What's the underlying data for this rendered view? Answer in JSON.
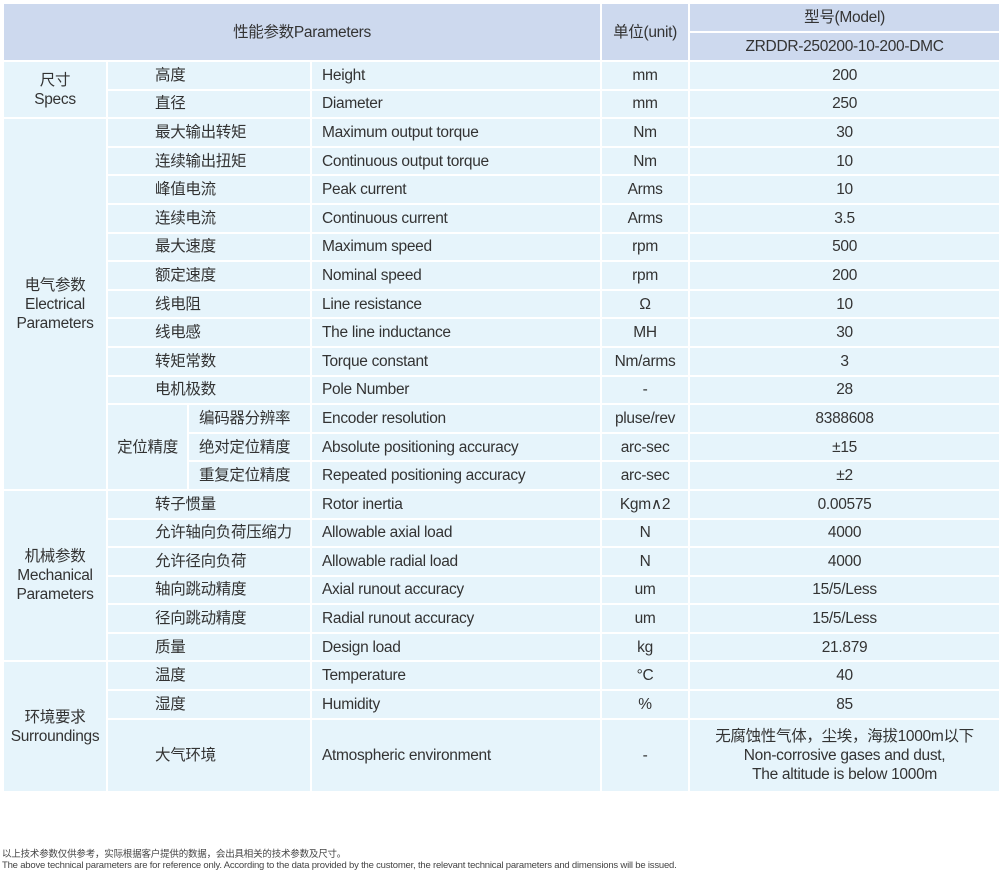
{
  "header": {
    "parameters": "性能参数Parameters",
    "unit": "单位(unit)",
    "model_label": "型号(Model)",
    "model": "ZRDDR-250200-10-200-DMC"
  },
  "sections": [
    {
      "label": "尺寸\nSpecs",
      "rows": [
        {
          "zh": "高度",
          "en": "Height",
          "unit": "mm",
          "value": "200"
        },
        {
          "zh": "直径",
          "en": "Diameter",
          "unit": "mm",
          "value": "250"
        }
      ]
    },
    {
      "label": "电气参数\nElectrical\nParameters",
      "rows": [
        {
          "zh": "最大输出转矩",
          "en": "Maximum output torque",
          "unit": "Nm",
          "value": "30"
        },
        {
          "zh": "连续输出扭矩",
          "en": "Continuous output torque",
          "unit": "Nm",
          "value": "10"
        },
        {
          "zh": "峰值电流",
          "en": "Peak current",
          "unit": "Arms",
          "value": "10"
        },
        {
          "zh": "连续电流",
          "en": "Continuous current",
          "unit": "Arms",
          "value": "3.5"
        },
        {
          "zh": "最大速度",
          "en": "Maximum speed",
          "unit": "rpm",
          "value": "500"
        },
        {
          "zh": "额定速度",
          "en": "Nominal speed",
          "unit": "rpm",
          "value": "200"
        },
        {
          "zh": "线电阻",
          "en": "Line resistance",
          "unit": "Ω",
          "value": "10"
        },
        {
          "zh": "线电感",
          "en": "The line inductance",
          "unit": "MH",
          "value": "30"
        },
        {
          "zh": "转矩常数",
          "en": "Torque constant",
          "unit": "Nm/arms",
          "value": "3"
        },
        {
          "zh": "电机极数",
          "en": "Pole Number",
          "unit": "-",
          "value": "28"
        },
        {
          "group": "定位精度",
          "zh": "编码器分辨率",
          "en": "Encoder resolution",
          "unit": "pluse/rev",
          "value": "8388608"
        },
        {
          "group": "定位精度",
          "zh": "绝对定位精度",
          "en": "Absolute positioning accuracy",
          "unit": "arc-sec",
          "value": "±15"
        },
        {
          "group": "定位精度",
          "zh": "重复定位精度",
          "en": "Repeated positioning accuracy",
          "unit": "arc-sec",
          "value": "±2"
        }
      ]
    },
    {
      "label": "机械参数\nMechanical\nParameters",
      "rows": [
        {
          "zh": "转子惯量",
          "en": "Rotor inertia",
          "unit": "Kgm∧2",
          "value": "0.00575"
        },
        {
          "zh": "允许轴向负荷压缩力",
          "en": "Allowable axial load",
          "unit": "N",
          "value": "4000"
        },
        {
          "zh": "允许径向负荷",
          "en": "Allowable radial load",
          "unit": "N",
          "value": "4000"
        },
        {
          "zh": "轴向跳动精度",
          "en": "Axial runout accuracy",
          "unit": "um",
          "value": "15/5/Less"
        },
        {
          "zh": "径向跳动精度",
          "en": "Radial runout accuracy",
          "unit": "um",
          "value": "15/5/Less"
        },
        {
          "zh": "质量",
          "en": "Design load",
          "unit": "kg",
          "value": "21.879"
        }
      ]
    },
    {
      "label": "环境要求\nSurroundings",
      "rows": [
        {
          "zh": "温度",
          "en": "Temperature",
          "unit": "°C",
          "value": "40"
        },
        {
          "zh": "湿度",
          "en": "Humidity",
          "unit": "%",
          "value": "85"
        },
        {
          "zh": "大气环境",
          "en": "Atmospheric environment",
          "unit": "-",
          "value": "无腐蚀性气体，尘埃，海拔1000m以下\nNon-corrosive gases and dust,\nThe altitude is below 1000m"
        }
      ]
    }
  ],
  "footnote": {
    "zh": "以上技术参数仅供参考，实际根据客户提供的数据，会出具相关的技术参数及尺寸。",
    "en": "The above technical parameters are for reference only. According to the data provided by the customer, the relevant technical parameters and dimensions will be issued."
  },
  "colors": {
    "header_bg": "#cdd9ee",
    "body_bg": "#e6f4fb",
    "grid": "#ffffff"
  }
}
